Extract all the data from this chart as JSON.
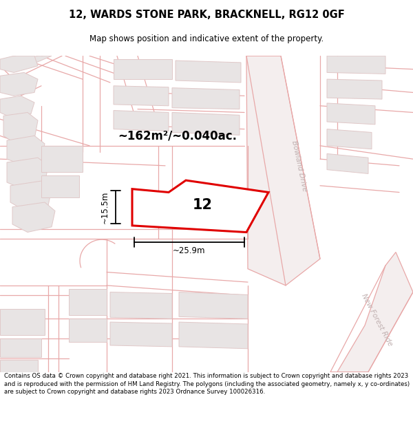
{
  "title": "12, WARDS STONE PARK, BRACKNELL, RG12 0GF",
  "subtitle": "Map shows position and indicative extent of the property.",
  "footer": "Contains OS data © Crown copyright and database right 2021. This information is subject to Crown copyright and database rights 2023 and is reproduced with the permission of HM Land Registry. The polygons (including the associated geometry, namely x, y co-ordinates) are subject to Crown copyright and database rights 2023 Ordnance Survey 100026316.",
  "area_label": "~162m²/~0.040ac.",
  "width_label": "~25.9m",
  "height_label": "~15.5m",
  "property_number": "12",
  "map_bg": "#f9f6f6",
  "road_line_color": "#e8a8a8",
  "building_fill": "#e8e4e4",
  "building_stroke": "#e0c8c8",
  "road_fill": "#f4eeee",
  "road_label_color": "#c0b0b0",
  "property_stroke": "#e00000",
  "title_fontsize": 10.5,
  "subtitle_fontsize": 8.5,
  "footer_fontsize": 6.2,
  "map_xlim": [
    0,
    600
  ],
  "map_ylim": [
    0,
    475
  ],
  "title_line1": "12, WARDS STONE PARK, BRACKNELL, RG12 0GF",
  "title_line2": "Map shows position and indicative extent of the property."
}
